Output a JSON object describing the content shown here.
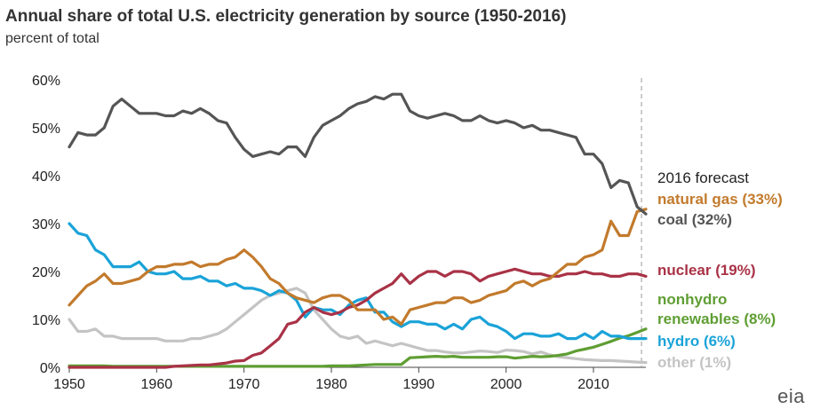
{
  "title": "Annual share of total U.S. electricity generation by source (1950-2016)",
  "subtitle": "percent of total",
  "logo": "eia",
  "forecast_label": "2016 forecast",
  "chart_data": {
    "type": "line",
    "title": "Annual share of total U.S. electricity generation by source (1950-2016)",
    "ylabel": "percent of total",
    "xlabel": "",
    "xlim": [
      1950,
      2016
    ],
    "ylim": [
      0,
      60
    ],
    "x_ticks": [
      "1950",
      "1960",
      "1970",
      "1980",
      "1990",
      "2000",
      "2010"
    ],
    "y_ticks": [
      "0%",
      "10%",
      "20%",
      "30%",
      "40%",
      "50%",
      "60%"
    ],
    "forecast_year": 2015.5,
    "grid": false,
    "x": [
      1950,
      1951,
      1952,
      1953,
      1954,
      1955,
      1956,
      1957,
      1958,
      1959,
      1960,
      1961,
      1962,
      1963,
      1964,
      1965,
      1966,
      1967,
      1968,
      1969,
      1970,
      1971,
      1972,
      1973,
      1974,
      1975,
      1976,
      1977,
      1978,
      1979,
      1980,
      1981,
      1982,
      1983,
      1984,
      1985,
      1986,
      1987,
      1988,
      1989,
      1990,
      1991,
      1992,
      1993,
      1994,
      1995,
      1996,
      1997,
      1998,
      1999,
      2000,
      2001,
      2002,
      2003,
      2004,
      2005,
      2006,
      2007,
      2008,
      2009,
      2010,
      2011,
      2012,
      2013,
      2014,
      2015,
      2016
    ],
    "series": [
      {
        "name": "coal",
        "label": "coal (32%)",
        "color": "#555555",
        "values": [
          46,
          49,
          48.5,
          48.5,
          50,
          54.5,
          56,
          54.5,
          53,
          53,
          53,
          52.5,
          52.5,
          53.5,
          53,
          54,
          53,
          51.5,
          51,
          48,
          45.5,
          44,
          44.5,
          45,
          44.5,
          46,
          46,
          44,
          48,
          50.5,
          51.5,
          52.5,
          54,
          55,
          55.5,
          56.5,
          56,
          57,
          57,
          53.5,
          52.5,
          52,
          52.5,
          53,
          52.5,
          51.5,
          51.5,
          52.5,
          51.5,
          51,
          51.5,
          51,
          50,
          50.5,
          49.5,
          49.5,
          49,
          48.5,
          48,
          44.5,
          44.5,
          42.5,
          37.5,
          39,
          38.5,
          33.5,
          32
        ]
      },
      {
        "name": "natural gas",
        "label": "natural gas (33%)",
        "color": "#c27a2c",
        "values": [
          13,
          15,
          17,
          18,
          19.5,
          17.5,
          17.5,
          18,
          18.5,
          20,
          21,
          21,
          21.5,
          21.5,
          22,
          21,
          21.5,
          21.5,
          22.5,
          23,
          24.5,
          23,
          21,
          18.5,
          17.5,
          15.5,
          14.5,
          14,
          13.5,
          14.5,
          15,
          15,
          14,
          12,
          12,
          12,
          10,
          10.5,
          9,
          12,
          12.5,
          13,
          13.5,
          13.5,
          14.5,
          14.5,
          13.5,
          14,
          15,
          15.5,
          16,
          17.5,
          18,
          17,
          18,
          18.5,
          20,
          21.5,
          21.5,
          23,
          23.5,
          24.5,
          30.5,
          27.5,
          27.5,
          32.5,
          33
        ]
      },
      {
        "name": "nuclear",
        "label": "nuclear (19%)",
        "color": "#a93246",
        "values": [
          0,
          0,
          0,
          0,
          0,
          0,
          0,
          0,
          0,
          0,
          0,
          0,
          0.2,
          0.3,
          0.4,
          0.5,
          0.5,
          0.7,
          0.9,
          1.3,
          1.4,
          2.5,
          3,
          4.5,
          6,
          9,
          9.5,
          11.5,
          12.5,
          11.5,
          11,
          11.5,
          12.5,
          13,
          14,
          15.5,
          16.5,
          17.5,
          19.5,
          17.5,
          19,
          20,
          20,
          19,
          20,
          20,
          19.5,
          18,
          19,
          19.5,
          20,
          20.5,
          20,
          19.5,
          19.5,
          19,
          19,
          19.5,
          19.5,
          20,
          19.5,
          19.5,
          19,
          19,
          19.5,
          19.5,
          19
        ]
      },
      {
        "name": "hydro",
        "label": "hydro (6%)",
        "color": "#1aa3d8",
        "values": [
          30,
          28,
          27.5,
          24.5,
          23.5,
          21,
          21,
          21,
          22,
          20,
          19.5,
          19.5,
          20,
          18.5,
          18.5,
          19,
          18,
          18,
          17,
          17.5,
          16.5,
          16.5,
          16,
          15,
          16,
          15.5,
          14,
          10.5,
          12.5,
          12,
          12,
          11,
          13,
          14,
          14.5,
          11.5,
          11.5,
          9.5,
          8.5,
          9.5,
          9.5,
          9,
          9,
          8,
          9,
          8,
          10,
          10.5,
          9,
          8.5,
          7.5,
          6,
          7,
          7,
          6.5,
          6.5,
          7,
          6,
          6,
          7,
          6,
          7.5,
          6.5,
          6.5,
          6,
          6,
          6
        ]
      },
      {
        "name": "nonhydro renewables",
        "label": "nonhydro renewables (8%)",
        "color": "#5f9e33",
        "values": [
          0.3,
          0.3,
          0.3,
          0.3,
          0.3,
          0.2,
          0.2,
          0.2,
          0.2,
          0.2,
          0.2,
          0.2,
          0.2,
          0.2,
          0.2,
          0.2,
          0.2,
          0.2,
          0.2,
          0.2,
          0.2,
          0.2,
          0.2,
          0.2,
          0.2,
          0.2,
          0.2,
          0.2,
          0.2,
          0.2,
          0.3,
          0.3,
          0.3,
          0.4,
          0.5,
          0.6,
          0.6,
          0.6,
          0.6,
          2,
          2.1,
          2.2,
          2.3,
          2.2,
          2.3,
          2.1,
          2.1,
          2.1,
          2.1,
          2.2,
          2.2,
          1.9,
          2.1,
          2.3,
          2.2,
          2.3,
          2.5,
          2.8,
          3.4,
          3.8,
          4.2,
          4.8,
          5.4,
          6.1,
          6.6,
          7.3,
          8
        ]
      },
      {
        "name": "other",
        "label": "other (1%)",
        "color": "#c4c4c4",
        "values": [
          10,
          7.5,
          7.5,
          8,
          6.5,
          6.5,
          6,
          6,
          6,
          6,
          6,
          5.5,
          5.5,
          5.5,
          6,
          6,
          6.5,
          7,
          8,
          9.5,
          11,
          12.5,
          14,
          15,
          15.5,
          16,
          16.5,
          15.5,
          12,
          10,
          8,
          6.5,
          6,
          6.5,
          5,
          5.5,
          5,
          4.5,
          5,
          4.5,
          4,
          3.5,
          3.5,
          3.2,
          3,
          3,
          3.2,
          3.4,
          3.3,
          3.1,
          3.6,
          3.5,
          3.3,
          2.8,
          3.2,
          2.6,
          2.2,
          2,
          1.8,
          1.6,
          1.5,
          1.4,
          1.4,
          1.3,
          1.2,
          1.1,
          1
        ]
      }
    ]
  }
}
